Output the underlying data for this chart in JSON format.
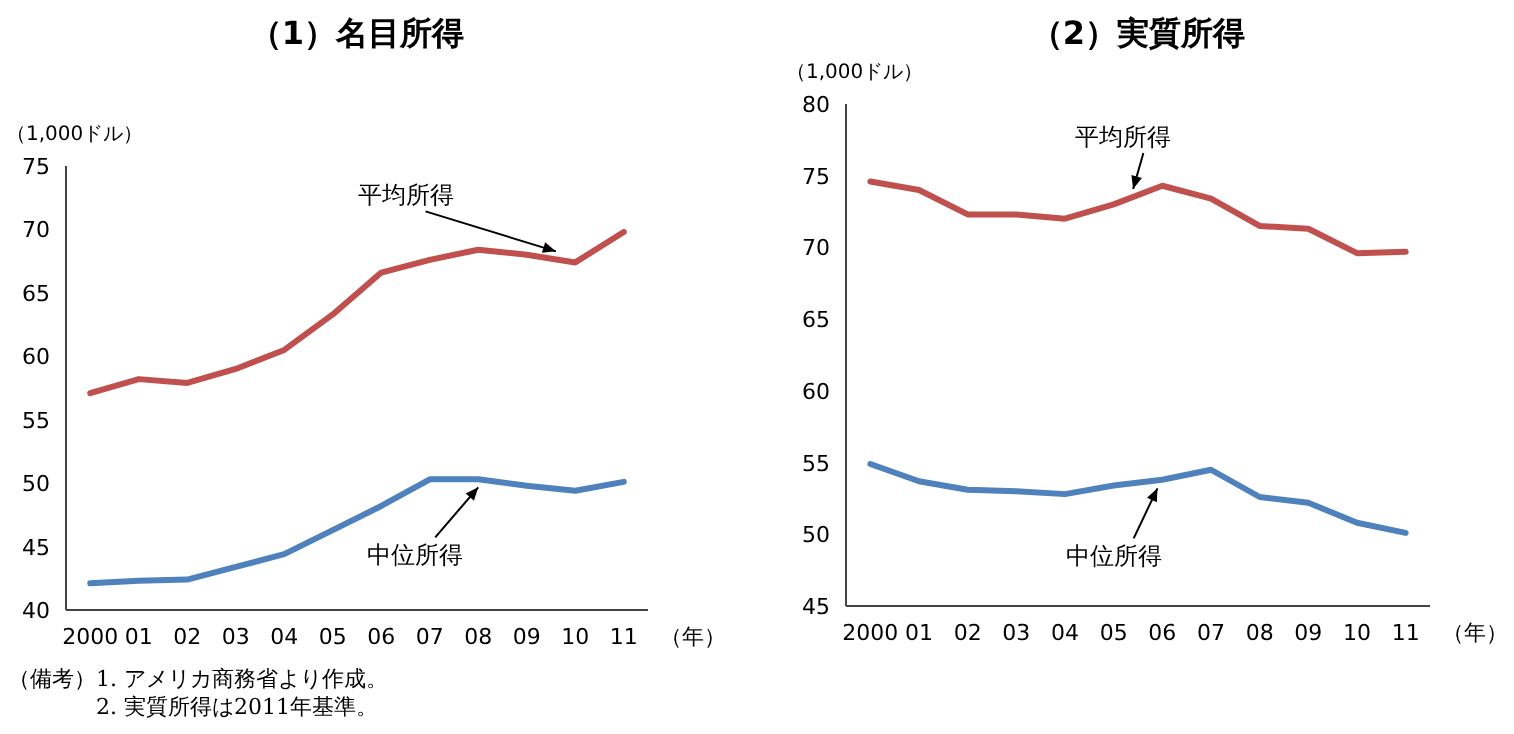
{
  "chart_data": [
    {
      "type": "line",
      "title": "（1）名目所得",
      "ylabel": "（1,000ドル）",
      "xlabel": "（年）",
      "categories": [
        "2000",
        "01",
        "02",
        "03",
        "04",
        "05",
        "06",
        "07",
        "08",
        "09",
        "10",
        "11"
      ],
      "series": [
        {
          "name": "平均所得",
          "color": "#c0504d",
          "values": [
            57.1,
            58.2,
            57.9,
            59.0,
            60.5,
            63.3,
            66.6,
            67.6,
            68.4,
            68.0,
            67.4,
            69.8
          ]
        },
        {
          "name": "中位所得",
          "color": "#4f81bd",
          "values": [
            42.1,
            42.3,
            42.4,
            43.4,
            44.4,
            46.3,
            48.2,
            50.3,
            50.3,
            49.8,
            49.4,
            50.1
          ]
        }
      ],
      "ylim": [
        40,
        75
      ],
      "yticks": [
        40,
        45,
        50,
        55,
        60,
        65,
        70,
        75
      ],
      "grid": false,
      "annotations": [
        "（備考）1. アメリカ商務省より作成。",
        "2. 実質所得は2011年基準。"
      ]
    },
    {
      "type": "line",
      "title": "（2）実質所得",
      "ylabel": "（1,000ドル）",
      "xlabel": "（年）",
      "categories": [
        "2000",
        "01",
        "02",
        "03",
        "04",
        "05",
        "06",
        "07",
        "08",
        "09",
        "10",
        "11"
      ],
      "series": [
        {
          "name": "平均所得",
          "color": "#c0504d",
          "values": [
            74.6,
            74.0,
            72.3,
            72.3,
            72.0,
            73.0,
            74.3,
            73.4,
            71.5,
            71.3,
            69.6,
            69.7
          ]
        },
        {
          "name": "中位所得",
          "color": "#4f81bd",
          "values": [
            54.9,
            53.7,
            53.1,
            53.0,
            52.8,
            53.4,
            53.8,
            54.5,
            52.6,
            52.2,
            50.8,
            50.1
          ]
        }
      ],
      "ylim": [
        45,
        80
      ],
      "yticks": [
        45,
        50,
        55,
        60,
        65,
        70,
        75,
        80
      ],
      "grid": false
    }
  ]
}
